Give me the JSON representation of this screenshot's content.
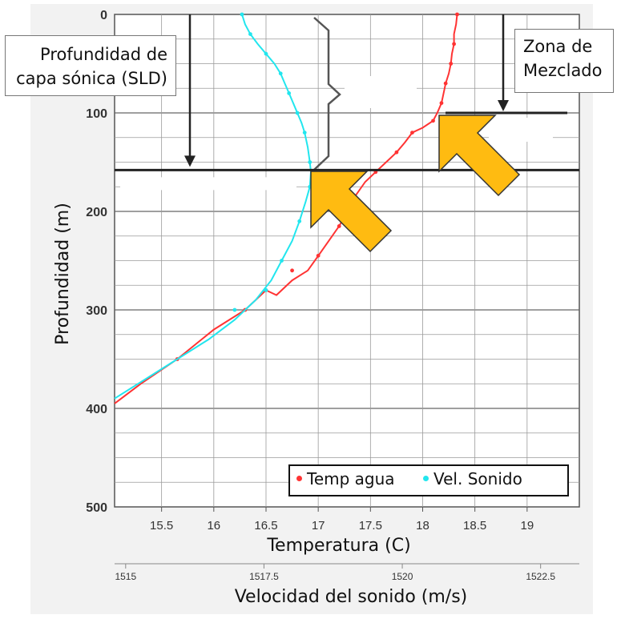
{
  "chart_data": {
    "type": "line",
    "title": "",
    "xlabel": "Temperatura (C)",
    "x2label": "Velocidad del sonido (m/s)",
    "ylabel": "Profundidad (m)",
    "ylim": [
      0,
      500
    ],
    "xlim_temp": [
      15.05,
      19.5
    ],
    "xlim_speed": [
      1514.8,
      1523.2
    ],
    "y_ticks": [
      "0",
      "100",
      "200",
      "300",
      "400",
      "500"
    ],
    "temp_ticks": [
      "15.5",
      "16",
      "16.5",
      "17",
      "17.5",
      "18",
      "18.5",
      "19"
    ],
    "speed_ticks": [
      "1515",
      "1517.5",
      "1520",
      "1522.5"
    ],
    "legend_placement": "bottom-right",
    "grid": true,
    "series": [
      {
        "name": "Temp agua",
        "axis": "temperature",
        "color": "#ff3333",
        "points": [
          [
            18.33,
            0
          ],
          [
            18.32,
            10
          ],
          [
            18.3,
            20
          ],
          [
            18.3,
            30
          ],
          [
            18.28,
            40
          ],
          [
            18.27,
            50
          ],
          [
            18.25,
            60
          ],
          [
            18.22,
            70
          ],
          [
            18.2,
            80
          ],
          [
            18.18,
            90
          ],
          [
            18.14,
            100
          ],
          [
            18.1,
            108
          ],
          [
            18.0,
            115
          ],
          [
            17.9,
            120
          ],
          [
            17.83,
            130
          ],
          [
            17.75,
            140
          ],
          [
            17.65,
            150
          ],
          [
            17.55,
            160
          ],
          [
            17.45,
            170
          ],
          [
            17.35,
            185
          ],
          [
            17.28,
            200
          ],
          [
            17.2,
            215
          ],
          [
            17.1,
            230
          ],
          [
            17.0,
            245
          ],
          [
            16.9,
            260
          ],
          [
            16.75,
            270
          ],
          [
            16.6,
            285
          ],
          [
            16.5,
            280
          ],
          [
            16.3,
            300
          ],
          [
            16.0,
            320
          ],
          [
            15.65,
            350
          ],
          [
            15.3,
            375
          ],
          [
            15.05,
            395
          ]
        ],
        "marker_points": [
          [
            18.33,
            0
          ],
          [
            18.3,
            30
          ],
          [
            18.27,
            50
          ],
          [
            18.22,
            70
          ],
          [
            18.18,
            90
          ],
          [
            18.1,
            108
          ],
          [
            17.9,
            120
          ],
          [
            17.75,
            140
          ],
          [
            17.55,
            160
          ],
          [
            17.35,
            185
          ],
          [
            17.2,
            215
          ],
          [
            17.0,
            245
          ],
          [
            16.75,
            260
          ],
          [
            16.5,
            280
          ],
          [
            16.3,
            300
          ],
          [
            15.65,
            350
          ]
        ]
      },
      {
        "name": "Vel. Sonido",
        "axis": "temperature",
        "color": "#22e6ee",
        "points": [
          [
            16.27,
            0
          ],
          [
            16.3,
            10
          ],
          [
            16.35,
            20
          ],
          [
            16.42,
            30
          ],
          [
            16.5,
            40
          ],
          [
            16.58,
            50
          ],
          [
            16.64,
            60
          ],
          [
            16.68,
            70
          ],
          [
            16.72,
            80
          ],
          [
            16.76,
            90
          ],
          [
            16.8,
            100
          ],
          [
            16.84,
            110
          ],
          [
            16.87,
            120
          ],
          [
            16.9,
            135
          ],
          [
            16.92,
            150
          ],
          [
            16.93,
            160
          ],
          [
            16.92,
            175
          ],
          [
            16.88,
            190
          ],
          [
            16.82,
            210
          ],
          [
            16.75,
            230
          ],
          [
            16.65,
            250
          ],
          [
            16.55,
            270
          ],
          [
            16.4,
            290
          ],
          [
            16.2,
            310
          ],
          [
            15.95,
            330
          ],
          [
            15.65,
            350
          ],
          [
            15.35,
            370
          ],
          [
            15.05,
            390
          ]
        ],
        "marker_points": [
          [
            16.27,
            0
          ],
          [
            16.35,
            20
          ],
          [
            16.5,
            40
          ],
          [
            16.64,
            60
          ],
          [
            16.72,
            80
          ],
          [
            16.8,
            100
          ],
          [
            16.87,
            120
          ],
          [
            16.92,
            150
          ],
          [
            16.92,
            175
          ],
          [
            16.82,
            210
          ],
          [
            16.65,
            250
          ],
          [
            16.5,
            280
          ],
          [
            16.2,
            300
          ]
        ]
      }
    ],
    "annotations": {
      "sld_label_lines": [
        "Profundidad de",
        "capa sónica (SLD)"
      ],
      "sld_depth": 158,
      "mixing_label_lines": [
        "Zona de",
        "Mezclado"
      ],
      "mixing_depth": 100
    }
  },
  "legend": {
    "temp_label": "Temp agua",
    "sound_label": "Vel. Sonido"
  }
}
